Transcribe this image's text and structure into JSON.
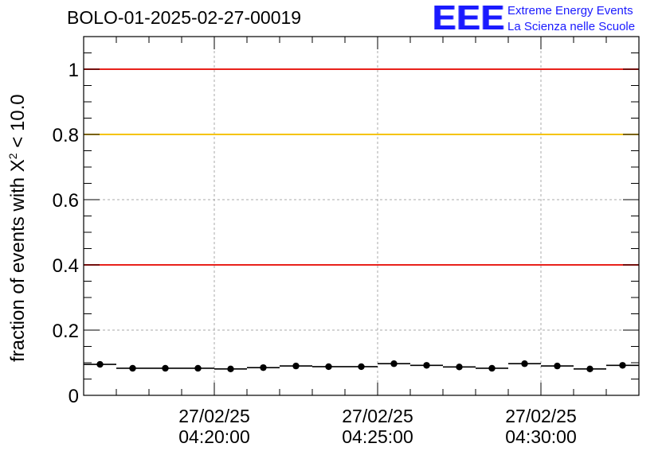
{
  "chart_data": {
    "type": "scatter",
    "title": "BOLO-01-2025-02-27-00019",
    "xlabel": "",
    "ylabel": {
      "prefix": "fraction of events with ",
      "symbol": "X",
      "exponent": "2",
      "suffix": " < 10.0"
    },
    "ylim": [
      0,
      1.1
    ],
    "yticks": [
      0,
      0.2,
      0.4,
      0.6,
      0.8,
      1
    ],
    "ytick_labels": [
      "0",
      "0.2",
      "0.4",
      "0.6",
      "0.8",
      "1"
    ],
    "xlim": [
      0,
      17
    ],
    "xticks": [
      {
        "x": 4,
        "date": "27/02/25",
        "time": "04:20:00"
      },
      {
        "x": 9,
        "date": "27/02/25",
        "time": "04:25:00"
      },
      {
        "x": 14,
        "date": "27/02/25",
        "time": "04:30:00"
      }
    ],
    "grid": true,
    "reference_lines": [
      {
        "y": 1.0,
        "color": "#e8211b"
      },
      {
        "y": 0.8,
        "color": "#f5c400"
      },
      {
        "y": 0.4,
        "color": "#e8211b"
      }
    ],
    "series": [
      {
        "name": "fraction",
        "x": [
          0.5,
          1.5,
          2.5,
          3.5,
          4.5,
          5.5,
          6.5,
          7.5,
          8.5,
          9.5,
          10.5,
          11.5,
          12.5,
          13.5,
          14.5,
          15.5,
          16.5
        ],
        "values": [
          0.095,
          0.083,
          0.083,
          0.083,
          0.081,
          0.085,
          0.09,
          0.088,
          0.088,
          0.097,
          0.092,
          0.087,
          0.083,
          0.097,
          0.09,
          0.081,
          0.092
        ],
        "x_halfwidth": 0.5,
        "marker_color": "#000000"
      }
    ]
  },
  "logo": {
    "mark": "EEE",
    "line1": "Extreme Energy Events",
    "line2": "La Scienza nelle Scuole",
    "color": "#1a1aff"
  }
}
